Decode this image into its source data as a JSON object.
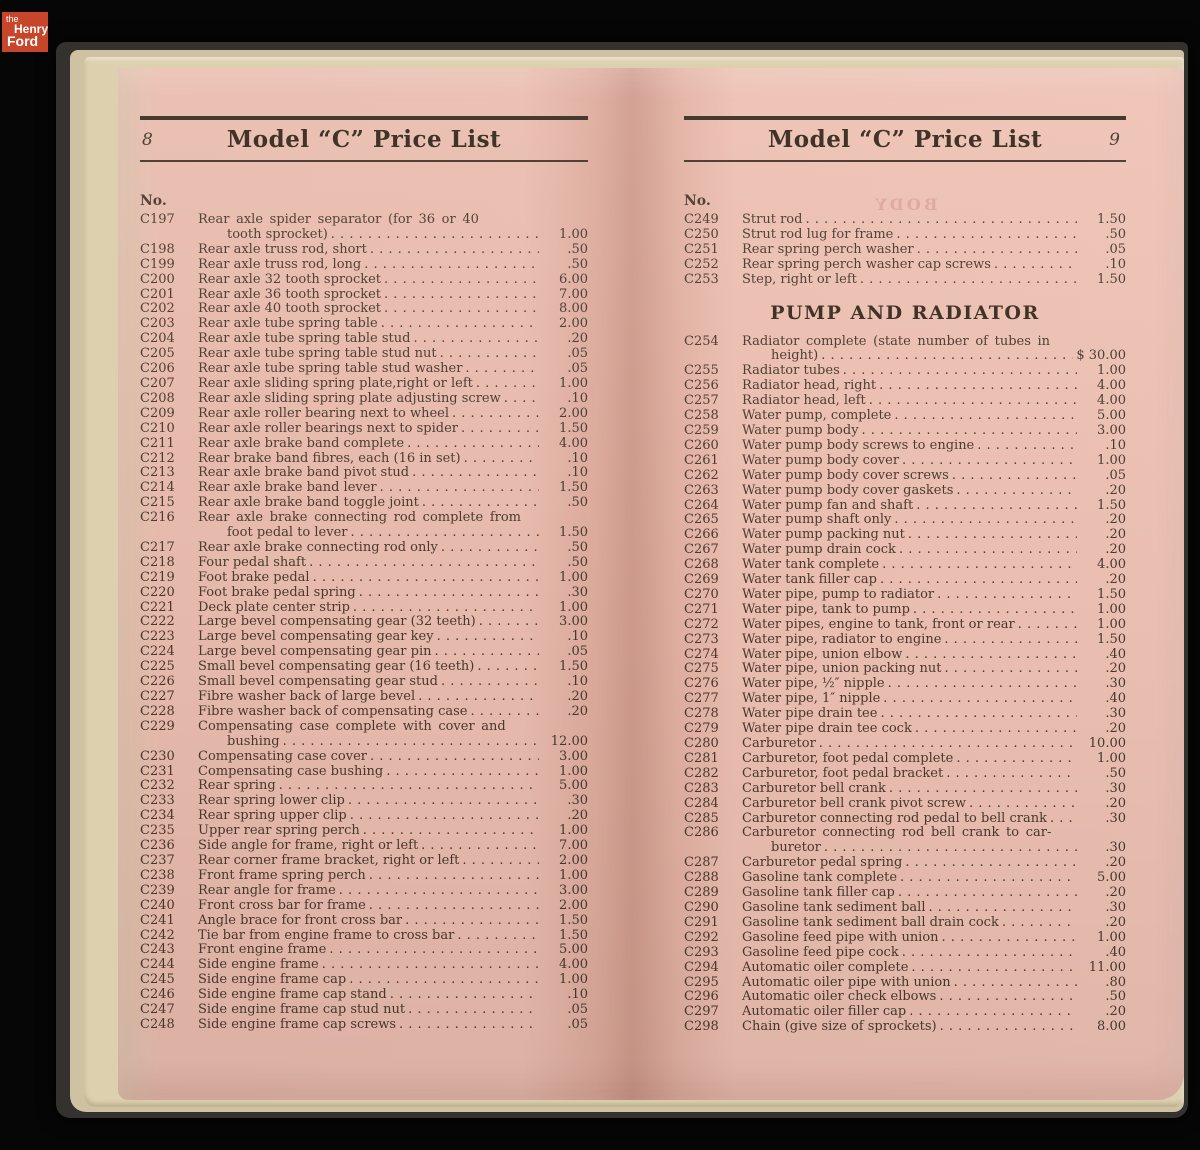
{
  "logo": {
    "the": "the",
    "henry": "Henry",
    "ford": "Ford"
  },
  "colors": {
    "background": "#060606",
    "logo_bg": "#c7462a",
    "paper_pink": "#ecc0b2",
    "gutter_shadow": "#cf9b8c",
    "page_edge_cream": "#ddd0af",
    "cover_dark": "#34322e",
    "ink": "#4b382e"
  },
  "left_page": {
    "page_number": "8",
    "title": "Model “C” Price List",
    "col_label": "No.",
    "rows": [
      {
        "n": "C197",
        "d": "Rear axle spider separator (for 36 or 40",
        "c": "tooth sprocket)",
        "p": "1.00"
      },
      {
        "n": "C198",
        "d": "Rear axle truss rod, short",
        "p": ".50"
      },
      {
        "n": "C199",
        "d": "Rear axle truss rod, long",
        "p": ".50"
      },
      {
        "n": "C200",
        "d": "Rear axle 32 tooth sprocket",
        "p": "6.00"
      },
      {
        "n": "C201",
        "d": "Rear axle 36 tooth sprocket",
        "p": "7.00"
      },
      {
        "n": "C202",
        "d": "Rear axle 40 tooth sprocket",
        "p": "8.00"
      },
      {
        "n": "C203",
        "d": "Rear axle tube spring table",
        "p": "2.00"
      },
      {
        "n": "C204",
        "d": "Rear axle tube spring table stud",
        "p": ".20"
      },
      {
        "n": "C205",
        "d": "Rear axle tube spring table stud nut",
        "p": ".05"
      },
      {
        "n": "C206",
        "d": "Rear axle tube spring table stud washer",
        "p": ".05"
      },
      {
        "n": "C207",
        "d": "Rear axle sliding spring plate,right or left",
        "p": "1.00"
      },
      {
        "n": "C208",
        "d": "Rear axle sliding spring plate adjusting screw",
        "p": ".10"
      },
      {
        "n": "C209",
        "d": "Rear axle roller bearing next to wheel",
        "p": "2.00"
      },
      {
        "n": "C210",
        "d": "Rear axle roller bearings next to spider",
        "p": "1.50"
      },
      {
        "n": "C211",
        "d": "Rear axle brake band complete",
        "p": "4.00"
      },
      {
        "n": "C212",
        "d": "Rear brake band fibres, each (16 in set)",
        "p": ".10"
      },
      {
        "n": "C213",
        "d": "Rear axle brake band pivot stud",
        "p": ".10"
      },
      {
        "n": "C214",
        "d": "Rear axle brake band lever",
        "p": "1.50"
      },
      {
        "n": "C215",
        "d": "Rear axle brake band toggle joint",
        "p": ".50"
      },
      {
        "n": "C216",
        "d": "Rear axle brake connecting rod complete from",
        "c": "foot pedal to lever",
        "p": "1.50"
      },
      {
        "n": "C217",
        "d": "Rear axle brake connecting rod only",
        "p": ".50"
      },
      {
        "n": "C218",
        "d": "Four pedal shaft",
        "p": ".50"
      },
      {
        "n": "C219",
        "d": "Foot brake pedal",
        "p": "1.00"
      },
      {
        "n": "C220",
        "d": "Foot brake pedal spring",
        "p": ".30"
      },
      {
        "n": "C221",
        "d": "Deck plate center strip",
        "p": "1.00"
      },
      {
        "n": "C222",
        "d": "Large bevel compensating gear (32 teeth)",
        "p": "3.00"
      },
      {
        "n": "C223",
        "d": "Large bevel compensating gear key",
        "p": ".10"
      },
      {
        "n": "C224",
        "d": "Large bevel compensating gear pin",
        "p": ".05"
      },
      {
        "n": "C225",
        "d": "Small bevel compensating gear (16 teeth)",
        "p": "1.50"
      },
      {
        "n": "C226",
        "d": "Small bevel compensating gear stud",
        "p": ".10"
      },
      {
        "n": "C227",
        "d": "Fibre washer back of large bevel",
        "p": ".20"
      },
      {
        "n": "C228",
        "d": "Fibre washer back of compensating case",
        "p": ".20"
      },
      {
        "n": "C229",
        "d": "Compensating case complete with cover and",
        "c": "bushing",
        "p": "12.00"
      },
      {
        "n": "C230",
        "d": "Compensating case cover",
        "p": "3.00"
      },
      {
        "n": "C231",
        "d": "Compensating case bushing",
        "p": "1.00"
      },
      {
        "n": "C232",
        "d": "Rear spring",
        "p": "5.00"
      },
      {
        "n": "C233",
        "d": "Rear spring lower clip",
        "p": ".30"
      },
      {
        "n": "C234",
        "d": "Rear spring upper clip",
        "p": ".20"
      },
      {
        "n": "C235",
        "d": "Upper rear spring perch",
        "p": "1.00"
      },
      {
        "n": "C236",
        "d": "Side angle for frame, right or left",
        "p": "7.00"
      },
      {
        "n": "C237",
        "d": "Rear corner frame bracket, right or left",
        "p": "2.00"
      },
      {
        "n": "C238",
        "d": "Front frame spring perch",
        "p": "1.00"
      },
      {
        "n": "C239",
        "d": "Rear angle for frame",
        "p": "3.00"
      },
      {
        "n": "C240",
        "d": "Front cross bar for frame",
        "p": "2.00"
      },
      {
        "n": "C241",
        "d": "Angle brace for front cross bar",
        "p": "1.50"
      },
      {
        "n": "C242",
        "d": "Tie bar from engine frame to cross bar",
        "p": "1.50"
      },
      {
        "n": "C243",
        "d": "Front engine frame",
        "p": "5.00"
      },
      {
        "n": "C244",
        "d": "Side engine frame",
        "p": "4.00"
      },
      {
        "n": "C245",
        "d": "Side engine frame cap",
        "p": "1.00"
      },
      {
        "n": "C246",
        "d": "Side engine frame cap stand",
        "p": ".10"
      },
      {
        "n": "C247",
        "d": "Side engine frame cap stud nut",
        "p": ".05"
      },
      {
        "n": "C248",
        "d": "Side engine frame cap screws",
        "p": ".05"
      }
    ]
  },
  "right_page": {
    "page_number": "9",
    "title": "Model “C” Price List",
    "col_label": "No.",
    "show_through": "BODY",
    "section_title": "PUMP AND RADIATOR",
    "rows_top": [
      {
        "n": "C249",
        "d": "Strut rod",
        "p": "1.50"
      },
      {
        "n": "C250",
        "d": "Strut rod lug for frame",
        "p": ".50"
      },
      {
        "n": "C251",
        "d": "Rear spring perch washer",
        "p": ".05"
      },
      {
        "n": "C252",
        "d": "Rear spring perch washer cap screws",
        "p": ".10"
      },
      {
        "n": "C253",
        "d": "Step, right or left",
        "p": "1.50"
      }
    ],
    "rows_bottom": [
      {
        "n": "C254",
        "d": "Radiator complete (state number of tubes in",
        "c": "height)",
        "p": "$ 30.00"
      },
      {
        "n": "C255",
        "d": "Radiator tubes",
        "p": "1.00"
      },
      {
        "n": "C256",
        "d": "Radiator head, right",
        "p": "4.00"
      },
      {
        "n": "C257",
        "d": "Radiator head, left",
        "p": "4.00"
      },
      {
        "n": "C258",
        "d": "Water pump, complete",
        "p": "5.00"
      },
      {
        "n": "C259",
        "d": "Water pump body",
        "p": "3.00"
      },
      {
        "n": "C260",
        "d": "Water pump body screws to engine",
        "p": ".10"
      },
      {
        "n": "C261",
        "d": "Water pump body cover",
        "p": "1.00"
      },
      {
        "n": "C262",
        "d": "Water pump body cover screws",
        "p": ".05"
      },
      {
        "n": "C263",
        "d": "Water pump body cover gaskets",
        "p": ".20"
      },
      {
        "n": "C264",
        "d": "Water pump fan and shaft",
        "p": "1.50"
      },
      {
        "n": "C265",
        "d": "Water pump shaft only",
        "p": ".20"
      },
      {
        "n": "C266",
        "d": "Water pump packing nut",
        "p": ".20"
      },
      {
        "n": "C267",
        "d": "Water pump drain cock",
        "p": ".20"
      },
      {
        "n": "C268",
        "d": "Water tank complete",
        "p": "4.00"
      },
      {
        "n": "C269",
        "d": "Water tank filler cap",
        "p": ".20"
      },
      {
        "n": "C270",
        "d": "Water pipe, pump to radiator",
        "p": "1.50"
      },
      {
        "n": "C271",
        "d": "Water pipe, tank to pump",
        "p": "1.00"
      },
      {
        "n": "C272",
        "d": "Water pipes, engine to tank, front or rear",
        "p": "1.00"
      },
      {
        "n": "C273",
        "d": "Water pipe, radiator to engine",
        "p": "1.50"
      },
      {
        "n": "C274",
        "d": "Water pipe, union elbow",
        "p": ".40"
      },
      {
        "n": "C275",
        "d": "Water pipe, union packing nut",
        "p": ".20"
      },
      {
        "n": "C276",
        "d": "Water pipe, ½″ nipple",
        "p": ".30"
      },
      {
        "n": "C277",
        "d": "Water pipe, 1″ nipple",
        "p": ".40"
      },
      {
        "n": "C278",
        "d": "Water pipe drain tee",
        "p": ".30"
      },
      {
        "n": "C279",
        "d": "Water pipe drain tee cock",
        "p": ".20"
      },
      {
        "n": "C280",
        "d": "Carburetor",
        "p": "10.00"
      },
      {
        "n": "C281",
        "d": "Carburetor, foot pedal complete",
        "p": "1.00"
      },
      {
        "n": "C282",
        "d": "Carburetor, foot pedal bracket",
        "p": ".50"
      },
      {
        "n": "C283",
        "d": "Carburetor bell crank",
        "p": ".30"
      },
      {
        "n": "C284",
        "d": "Carburetor bell crank pivot screw",
        "p": ".20"
      },
      {
        "n": "C285",
        "d": "Carburetor connecting rod pedal to bell crank",
        "p": ".30"
      },
      {
        "n": "C286",
        "d": "Carburetor connecting rod bell crank to car-",
        "c": "buretor",
        "p": ".30"
      },
      {
        "n": "C287",
        "d": "Carburetor pedal spring",
        "p": ".20"
      },
      {
        "n": "C288",
        "d": "Gasoline tank complete",
        "p": "5.00"
      },
      {
        "n": "C289",
        "d": "Gasoline tank filler cap",
        "p": ".20"
      },
      {
        "n": "C290",
        "d": "Gasoline tank sediment ball",
        "p": ".30"
      },
      {
        "n": "C291",
        "d": "Gasoline tank sediment ball drain cock",
        "p": ".20"
      },
      {
        "n": "C292",
        "d": "Gasoline feed pipe with union",
        "p": "1.00"
      },
      {
        "n": "C293",
        "d": "Gasoline feed pipe cock",
        "p": ".40"
      },
      {
        "n": "C294",
        "d": "Automatic oiler complete",
        "p": "11.00"
      },
      {
        "n": "C295",
        "d": "Automatic oiler pipe with union",
        "p": ".80"
      },
      {
        "n": "C296",
        "d": "Automatic oiler check elbows",
        "p": ".50"
      },
      {
        "n": "C297",
        "d": "Automatic oiler filler cap",
        "p": ".20"
      },
      {
        "n": "C298",
        "d": "Chain (give size of sprockets)",
        "p": "8.00"
      }
    ]
  }
}
